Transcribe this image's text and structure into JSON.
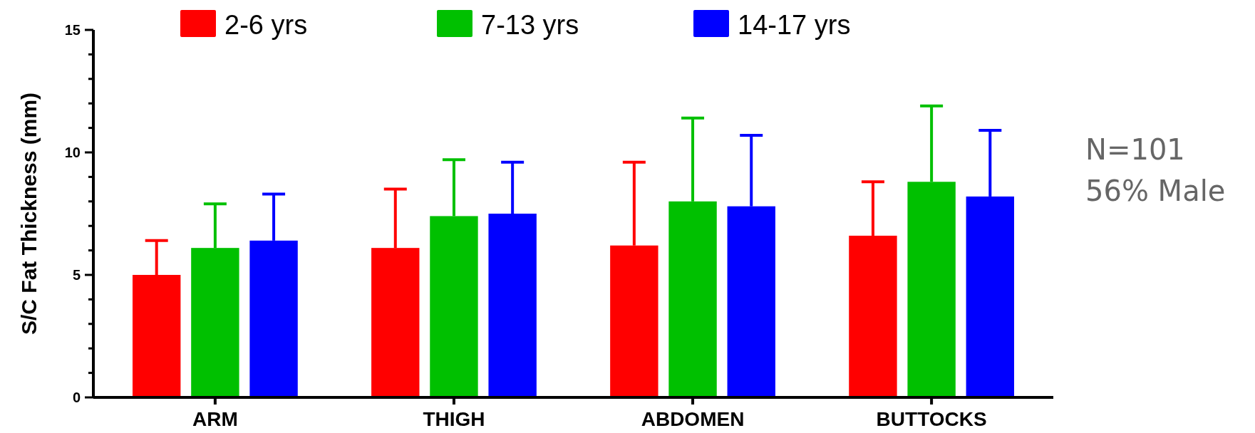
{
  "chart_data": {
    "type": "bar",
    "ylabel": "S/C Fat Thickness (mm)",
    "categories": [
      "ARM",
      "THIGH",
      "ABDOMEN",
      "BUTTOCKS"
    ],
    "series": [
      {
        "name": "2-6 yrs",
        "color": "#ff0000",
        "values": [
          5.0,
          6.1,
          6.2,
          6.6
        ],
        "errors": [
          [
            5.0,
            6.4
          ],
          [
            6.1,
            8.5
          ],
          [
            6.2,
            9.6
          ],
          [
            6.6,
            8.8
          ]
        ]
      },
      {
        "name": "7-13 yrs",
        "color": "#00c000",
        "values": [
          6.1,
          7.4,
          8.0,
          8.8
        ],
        "errors": [
          [
            6.1,
            7.9
          ],
          [
            7.4,
            9.7
          ],
          [
            8.0,
            11.4
          ],
          [
            8.8,
            11.9
          ]
        ]
      },
      {
        "name": "14-17 yrs",
        "color": "#0000ff",
        "values": [
          6.4,
          7.5,
          7.8,
          8.2
        ],
        "errors": [
          [
            6.4,
            8.3
          ],
          [
            7.5,
            9.6
          ],
          [
            7.8,
            10.7
          ],
          [
            8.2,
            10.9
          ]
        ]
      }
    ],
    "ylim": [
      0,
      15
    ],
    "yticks": [
      0,
      {
        "value": 1,
        "label": null
      },
      {
        "value": 2,
        "label": null
      },
      {
        "value": 3,
        "label": null
      },
      {
        "value": 4,
        "label": null
      },
      5,
      {
        "value": 6,
        "label": null
      },
      {
        "value": 7,
        "label": null
      },
      {
        "value": 8,
        "label": null
      },
      {
        "value": 9,
        "label": null
      },
      10,
      {
        "value": 11,
        "label": null
      },
      {
        "value": 12,
        "label": null
      },
      {
        "value": 13,
        "label": null
      },
      {
        "value": 14,
        "label": null
      },
      15
    ],
    "legend": "top",
    "grid": false,
    "annotations": [
      "N=101",
      "56% Male"
    ]
  }
}
